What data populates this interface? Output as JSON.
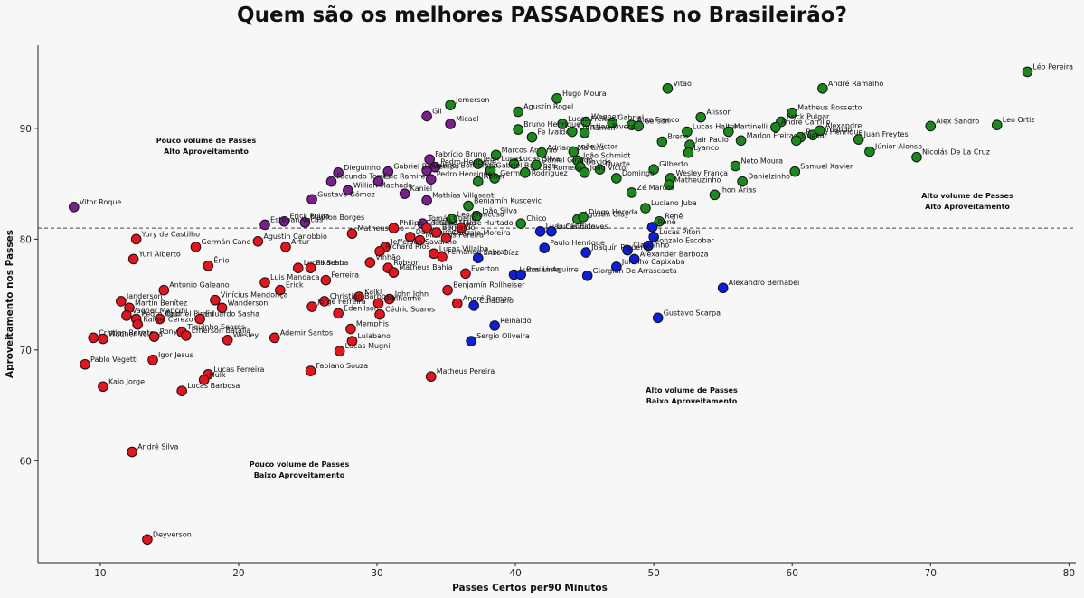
{
  "chart_data": {
    "type": "scatter",
    "title": "Quem são os melhores PASSADORES no Brasileirão?",
    "xlabel": "Passes Certos per90 Minutos",
    "ylabel": "Aproveitamento nos Passes",
    "xlim": [
      5.5,
      80.5
    ],
    "ylim": [
      50.8,
      97.5
    ],
    "xticks": [
      10,
      20,
      30,
      40,
      50,
      60,
      70,
      80
    ],
    "yticks": [
      60,
      70,
      80,
      90
    ],
    "grid": false,
    "reference_lines": {
      "x": 36.5,
      "y": 81.0
    },
    "quadrant_labels": [
      {
        "lines": [
          "Pouco volume de Passes",
          "Alto Aproveitamento"
        ]
      },
      {
        "lines": [
          "Alto volume de Passes",
          "Alto Aproveitamento"
        ]
      },
      {
        "lines": [
          "Pouco volume de Passes",
          "Baixo Aproveitamento"
        ]
      },
      {
        "lines": [
          "Alto volume de Passes",
          "Baixo Aproveitamento"
        ]
      }
    ],
    "colors": {
      "green": "#1a8a1a",
      "purple": "#7a1f8f",
      "red": "#e8141c",
      "blue": "#0c1ee0"
    },
    "series": [
      {
        "color_key": "green",
        "points": [
          {
            "x": 77.0,
            "y": 95.1,
            "label": "Léo Pereira"
          },
          {
            "x": 62.2,
            "y": 93.6,
            "label": "André Ramalho"
          },
          {
            "x": 51.0,
            "y": 93.6,
            "label": "Vitão"
          },
          {
            "x": 60.0,
            "y": 91.4,
            "label": "Matheus Rossetto"
          },
          {
            "x": 35.3,
            "y": 92.1,
            "label": "Jemerson"
          },
          {
            "x": 40.2,
            "y": 91.5,
            "label": "Agustín Rogel"
          },
          {
            "x": 43.0,
            "y": 92.7,
            "label": "Hugo Moura"
          },
          {
            "x": 45.1,
            "y": 90.6,
            "label": "Wagner"
          },
          {
            "x": 47.0,
            "y": 90.5,
            "label": "Gabriel"
          },
          {
            "x": 48.4,
            "y": 90.3,
            "label": "Alan Franco"
          },
          {
            "x": 53.4,
            "y": 91.0,
            "label": "Alisson"
          },
          {
            "x": 59.2,
            "y": 90.6,
            "label": "Erick Pulgar"
          },
          {
            "x": 60.6,
            "y": 89.2,
            "label": "Bruno Henrique"
          },
          {
            "x": 61.5,
            "y": 89.4,
            "label": "Fernando"
          },
          {
            "x": 70.0,
            "y": 90.2,
            "label": "Alex Sandro"
          },
          {
            "x": 74.8,
            "y": 90.3,
            "label": "Leo Ortiz"
          },
          {
            "x": 64.8,
            "y": 89.0,
            "label": "Juan Freytes"
          },
          {
            "x": 62.0,
            "y": 89.8,
            "label": "Alexandre"
          },
          {
            "x": 58.8,
            "y": 90.1,
            "label": "André Carrillo"
          },
          {
            "x": 52.4,
            "y": 89.7,
            "label": "Lucas Halter"
          },
          {
            "x": 55.4,
            "y": 89.7,
            "label": "Martinelli"
          },
          {
            "x": 56.3,
            "y": 88.9,
            "label": "Marlon Freitas"
          },
          {
            "x": 50.6,
            "y": 88.8,
            "label": "Breno"
          },
          {
            "x": 48.9,
            "y": 90.2,
            "label": "Gerson"
          },
          {
            "x": 45.0,
            "y": 89.6,
            "label": "Ramon"
          },
          {
            "x": 43.4,
            "y": 90.4,
            "label": "Lucas Freitas"
          },
          {
            "x": 40.2,
            "y": 89.9,
            "label": "Bruno Henrique"
          },
          {
            "x": 41.2,
            "y": 89.2,
            "label": "Fe Ivaldo"
          },
          {
            "x": 44.1,
            "y": 89.7,
            "label": "Christian Rivera"
          },
          {
            "x": 65.6,
            "y": 87.9,
            "label": "Júnior Alonso"
          },
          {
            "x": 69.0,
            "y": 87.4,
            "label": "Nicolás De La Cruz"
          },
          {
            "x": 60.3,
            "y": 88.9,
            "label": "Cuéllar"
          },
          {
            "x": 52.6,
            "y": 88.5,
            "label": "Jair Paulo"
          },
          {
            "x": 52.5,
            "y": 87.8,
            "label": "Lyanco"
          },
          {
            "x": 38.6,
            "y": 87.6,
            "label": "Marcos Antônio"
          },
          {
            "x": 39.9,
            "y": 86.8,
            "label": "Lucas Silva"
          },
          {
            "x": 41.9,
            "y": 87.8,
            "label": "Adriano Martins"
          },
          {
            "x": 44.2,
            "y": 87.9,
            "label": "João Victor"
          },
          {
            "x": 44.5,
            "y": 87.1,
            "label": "João Schmidt"
          },
          {
            "x": 55.9,
            "y": 86.6,
            "label": "Neto Moura"
          },
          {
            "x": 60.2,
            "y": 86.1,
            "label": "Samuel Xavier"
          },
          {
            "x": 46.1,
            "y": 86.3,
            "label": "Duarte"
          },
          {
            "x": 44.7,
            "y": 86.5,
            "label": "Davide"
          },
          {
            "x": 45.0,
            "y": 86.0,
            "label": "João Victor"
          },
          {
            "x": 50.0,
            "y": 86.3,
            "label": "Gilberto"
          },
          {
            "x": 51.2,
            "y": 85.5,
            "label": "Wesley França"
          },
          {
            "x": 47.3,
            "y": 85.5,
            "label": "Domingo"
          },
          {
            "x": 56.4,
            "y": 85.2,
            "label": "Danielzinho"
          },
          {
            "x": 51.1,
            "y": 84.9,
            "label": "Matheuzinho"
          },
          {
            "x": 48.4,
            "y": 84.2,
            "label": "Zé Marcos"
          },
          {
            "x": 54.4,
            "y": 84.0,
            "label": "Jhon Arias"
          },
          {
            "x": 38.2,
            "y": 86.2,
            "label": "Gabriel Baralhas"
          },
          {
            "x": 38.5,
            "y": 85.5,
            "label": "Germán Rodríguez"
          },
          {
            "x": 40.7,
            "y": 86.0,
            "label": "Lucas Romero"
          },
          {
            "x": 41.5,
            "y": 86.7,
            "label": "Daniel Giraldo"
          },
          {
            "x": 37.3,
            "y": 86.8,
            "label": "Jean Lucas"
          },
          {
            "x": 37.3,
            "y": 85.2,
            "label": "Abner"
          },
          {
            "x": 36.6,
            "y": 83.0,
            "label": "Benjamín Kuscevic"
          },
          {
            "x": 37.2,
            "y": 82.1,
            "label": "João Silva"
          },
          {
            "x": 40.4,
            "y": 81.4,
            "label": "Chico"
          },
          {
            "x": 44.5,
            "y": 81.8,
            "label": "Agustín Giay"
          },
          {
            "x": 44.9,
            "y": 82.0,
            "label": "Diogo Hereda"
          },
          {
            "x": 49.4,
            "y": 82.8,
            "label": "Luciano Juba"
          },
          {
            "x": 50.4,
            "y": 81.6,
            "label": "Renê"
          },
          {
            "x": 35.4,
            "y": 81.8,
            "label": "Leo Mancuso"
          }
        ]
      },
      {
        "color_key": "purple",
        "points": [
          {
            "x": 8.1,
            "y": 82.9,
            "label": "Vitor Roque"
          },
          {
            "x": 33.6,
            "y": 91.1,
            "label": "Gil"
          },
          {
            "x": 35.3,
            "y": 90.4,
            "label": "Micael"
          },
          {
            "x": 33.8,
            "y": 87.2,
            "label": "Fabrício Bruno"
          },
          {
            "x": 34.2,
            "y": 86.5,
            "label": "Pedro Henrique"
          },
          {
            "x": 33.6,
            "y": 86.2,
            "label": "Gabriel Bontempo"
          },
          {
            "x": 30.8,
            "y": 86.1,
            "label": "Gabriel Bontempo"
          },
          {
            "x": 27.2,
            "y": 86.0,
            "label": "Dieguinho"
          },
          {
            "x": 26.7,
            "y": 85.2,
            "label": "Facundo Torres"
          },
          {
            "x": 30.1,
            "y": 85.2,
            "label": "Eric Ramires"
          },
          {
            "x": 27.9,
            "y": 84.4,
            "label": "Willian Machado"
          },
          {
            "x": 32.0,
            "y": 84.1,
            "label": "Kaniel"
          },
          {
            "x": 33.9,
            "y": 85.4,
            "label": "Pedro Henrique"
          },
          {
            "x": 25.3,
            "y": 83.6,
            "label": "Gustavo Gómez"
          },
          {
            "x": 33.6,
            "y": 83.5,
            "label": "Mathías Villasanti"
          },
          {
            "x": 23.3,
            "y": 81.6,
            "label": "Erick Pulga"
          },
          {
            "x": 24.8,
            "y": 81.5,
            "label": "Marllon Borges"
          },
          {
            "x": 21.9,
            "y": 81.3,
            "label": "Esteban Vacas"
          },
          {
            "x": 33.3,
            "y": 81.4,
            "label": "Tomás Cuello"
          }
        ]
      },
      {
        "color_key": "red",
        "points": [
          {
            "x": 12.6,
            "y": 80.0,
            "label": "Yury de Castilho"
          },
          {
            "x": 16.9,
            "y": 79.3,
            "label": "Germán Cano"
          },
          {
            "x": 21.4,
            "y": 79.8,
            "label": "Agustín Canobbio"
          },
          {
            "x": 23.4,
            "y": 79.3,
            "label": "Artur"
          },
          {
            "x": 28.2,
            "y": 80.5,
            "label": "Matheusinho"
          },
          {
            "x": 31.2,
            "y": 81.0,
            "label": "Philipe Coutinho"
          },
          {
            "x": 33.6,
            "y": 81.0,
            "label": "Thiago Maia"
          },
          {
            "x": 36.1,
            "y": 81.0,
            "label": "José Hurtado"
          },
          {
            "x": 32.4,
            "y": 80.2,
            "label": "Du Queiroz"
          },
          {
            "x": 33.1,
            "y": 79.9,
            "label": "Matheus Pereira"
          },
          {
            "x": 34.3,
            "y": 80.6,
            "label": "Bernardo"
          },
          {
            "x": 30.6,
            "y": 79.3,
            "label": "Jefferson Savarino"
          },
          {
            "x": 30.2,
            "y": 78.9,
            "label": "Richard Ríos"
          },
          {
            "x": 34.1,
            "y": 78.7,
            "label": "Lucas Villalba"
          },
          {
            "x": 35.0,
            "y": 80.1,
            "label": "Gonzalo Moreira"
          },
          {
            "x": 34.7,
            "y": 78.4,
            "label": "Fernando Sobral"
          },
          {
            "x": 12.4,
            "y": 78.2,
            "label": "Yuri Alberto"
          },
          {
            "x": 17.8,
            "y": 77.6,
            "label": "Ênio"
          },
          {
            "x": 24.3,
            "y": 77.4,
            "label": "Lucas Sasha"
          },
          {
            "x": 25.2,
            "y": 77.4,
            "label": "Pikachu"
          },
          {
            "x": 29.5,
            "y": 77.9,
            "label": "Vinhão"
          },
          {
            "x": 30.8,
            "y": 77.4,
            "label": "Robson"
          },
          {
            "x": 31.2,
            "y": 77.0,
            "label": "Matheus Bahia"
          },
          {
            "x": 36.4,
            "y": 76.9,
            "label": "Everton"
          },
          {
            "x": 21.9,
            "y": 76.1,
            "label": "Luis Mandaca"
          },
          {
            "x": 26.3,
            "y": 76.3,
            "label": "Ferreira"
          },
          {
            "x": 14.6,
            "y": 75.4,
            "label": "Antonio Galeano"
          },
          {
            "x": 23.0,
            "y": 75.4,
            "label": "Erick"
          },
          {
            "x": 28.7,
            "y": 74.8,
            "label": "Kaiki"
          },
          {
            "x": 30.9,
            "y": 74.6,
            "label": "John John"
          },
          {
            "x": 35.1,
            "y": 75.4,
            "label": "Benjamín Rollheiser"
          },
          {
            "x": 11.5,
            "y": 74.4,
            "label": "Janderson"
          },
          {
            "x": 18.3,
            "y": 74.5,
            "label": "Vinícius Mendonça"
          },
          {
            "x": 26.2,
            "y": 74.4,
            "label": "Christian Barbosa"
          },
          {
            "x": 25.3,
            "y": 73.9,
            "label": "Jorge Ferreira"
          },
          {
            "x": 30.1,
            "y": 74.2,
            "label": "Guilherme"
          },
          {
            "x": 35.8,
            "y": 74.2,
            "label": "André Ramon"
          },
          {
            "x": 12.1,
            "y": 73.8,
            "label": "Martín Benítez"
          },
          {
            "x": 18.8,
            "y": 73.8,
            "label": "Wanderson"
          },
          {
            "x": 27.2,
            "y": 73.3,
            "label": "Edenilson"
          },
          {
            "x": 30.2,
            "y": 73.2,
            "label": "Cédric Soares"
          },
          {
            "x": 11.9,
            "y": 73.1,
            "label": "Vagner Mancini"
          },
          {
            "x": 12.6,
            "y": 72.8,
            "label": "Pedro Raul"
          },
          {
            "x": 14.3,
            "y": 72.8,
            "label": "Gabriel Pirani"
          },
          {
            "x": 17.2,
            "y": 72.8,
            "label": "Eduardo Sasha"
          },
          {
            "x": 12.7,
            "y": 72.3,
            "label": "Rafael Cerezo"
          },
          {
            "x": 15.9,
            "y": 71.6,
            "label": "Tiquinho Soares"
          },
          {
            "x": 28.1,
            "y": 71.9,
            "label": "Memphis"
          },
          {
            "x": 9.5,
            "y": 71.1,
            "label": "Cristian Renato"
          },
          {
            "x": 10.2,
            "y": 71.0,
            "label": "Wagner Valega"
          },
          {
            "x": 13.9,
            "y": 71.2,
            "label": "Rony"
          },
          {
            "x": 16.2,
            "y": 71.3,
            "label": "Emerson Batalla"
          },
          {
            "x": 19.2,
            "y": 70.9,
            "label": "Wesley"
          },
          {
            "x": 22.6,
            "y": 71.1,
            "label": "Ademir Santos"
          },
          {
            "x": 28.2,
            "y": 70.8,
            "label": "Luiabano"
          },
          {
            "x": 27.3,
            "y": 69.9,
            "label": "Lucas Mugni"
          },
          {
            "x": 8.9,
            "y": 68.7,
            "label": "Pablo Vegetti"
          },
          {
            "x": 13.8,
            "y": 69.1,
            "label": "Igor Jesus"
          },
          {
            "x": 17.8,
            "y": 67.8,
            "label": "Lucas Ferreira"
          },
          {
            "x": 17.5,
            "y": 67.3,
            "label": "Hulk"
          },
          {
            "x": 25.2,
            "y": 68.1,
            "label": "Fabiano Souza"
          },
          {
            "x": 33.9,
            "y": 67.6,
            "label": "Matheus Pereira"
          },
          {
            "x": 10.2,
            "y": 66.7,
            "label": "Kaio Jorge"
          },
          {
            "x": 15.9,
            "y": 66.3,
            "label": "Lucas Barbosa"
          },
          {
            "x": 12.3,
            "y": 60.8,
            "label": "André Silva"
          },
          {
            "x": 13.4,
            "y": 52.9,
            "label": "Deyverson"
          }
        ]
      },
      {
        "color_key": "blue",
        "points": [
          {
            "x": 41.8,
            "y": 80.7,
            "label": "Luan Cândido"
          },
          {
            "x": 42.6,
            "y": 80.7,
            "label": "Lucas Esteves"
          },
          {
            "x": 49.9,
            "y": 81.1,
            "label": "Renê"
          },
          {
            "x": 50.0,
            "y": 80.2,
            "label": "Lucas Piton"
          },
          {
            "x": 49.6,
            "y": 79.4,
            "label": "Gonzalo Escobar"
          },
          {
            "x": 48.1,
            "y": 79.0,
            "label": "Claudinho"
          },
          {
            "x": 42.1,
            "y": 79.2,
            "label": "Paulo Henrique"
          },
          {
            "x": 45.1,
            "y": 78.8,
            "label": "Joaquín Piquerez"
          },
          {
            "x": 37.3,
            "y": 78.3,
            "label": "Enzo Díaz"
          },
          {
            "x": 47.3,
            "y": 77.5,
            "label": "Juninho Capixaba"
          },
          {
            "x": 39.9,
            "y": 76.8,
            "label": "Lucas Lima"
          },
          {
            "x": 40.4,
            "y": 76.8,
            "label": "Braian Aguirre"
          },
          {
            "x": 45.2,
            "y": 76.7,
            "label": "Giorgian De Arrascaeta"
          },
          {
            "x": 55.0,
            "y": 75.6,
            "label": "Alexandro Bernabei"
          },
          {
            "x": 37.0,
            "y": 74.0,
            "label": "Cuiabano"
          },
          {
            "x": 50.3,
            "y": 72.9,
            "label": "Gustavo Scarpa"
          },
          {
            "x": 38.5,
            "y": 72.2,
            "label": "Reinaldo"
          },
          {
            "x": 36.8,
            "y": 70.8,
            "label": "Sergio Oliveira"
          },
          {
            "x": 48.6,
            "y": 78.2,
            "label": "Alexander Barboza"
          }
        ]
      }
    ]
  }
}
